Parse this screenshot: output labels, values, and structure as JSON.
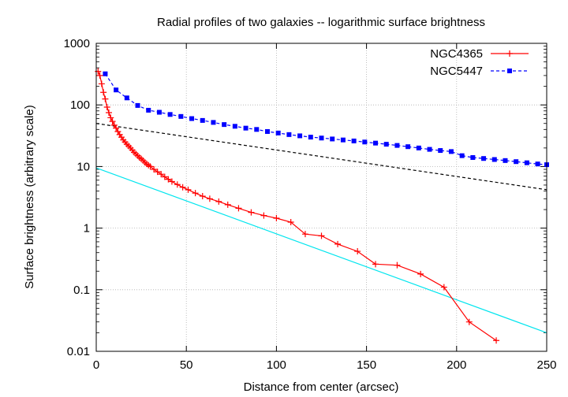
{
  "chart_data": {
    "type": "line",
    "title": "Radial profiles of two galaxies -- logarithmic surface brightness",
    "xlabel": "Distance from center (arcsec)",
    "ylabel": "Surface brightness (arbitrary scale)",
    "xlim": [
      0,
      250
    ],
    "ylim": [
      0.01,
      1000
    ],
    "yscale": "log",
    "grid": true,
    "legend_position": "top-right",
    "x_ticks": [
      "0",
      "50",
      "100",
      "150",
      "200",
      "250"
    ],
    "y_ticks": [
      "1000",
      "100",
      "10",
      "1",
      "0.1",
      "0.01"
    ],
    "series": [
      {
        "name": "NGC4365",
        "color": "#ff0000",
        "marker": "plus",
        "line_style": "solid",
        "x": [
          1,
          2,
          3,
          4,
          5,
          6,
          7,
          8,
          9,
          10,
          11,
          12,
          13,
          14,
          15,
          16,
          17,
          18,
          19,
          20,
          21,
          22,
          23,
          24,
          25,
          26,
          27,
          28,
          29,
          30,
          32,
          34,
          36,
          38,
          40,
          42,
          45,
          48,
          51,
          55,
          59,
          63,
          68,
          73,
          79,
          86,
          93,
          100,
          108,
          116,
          125,
          134,
          145,
          155,
          167,
          180,
          193,
          207,
          222
        ],
        "y": [
          350,
          300,
          220,
          160,
          125,
          92,
          75,
          62,
          54,
          47,
          42,
          37,
          33,
          30,
          27,
          25,
          23,
          21.5,
          20,
          18.5,
          17,
          16,
          15,
          14,
          13.3,
          12.5,
          11.7,
          11,
          10.5,
          10,
          9,
          8.2,
          7.5,
          6.8,
          6.2,
          5.7,
          5.1,
          4.6,
          4.2,
          3.7,
          3.3,
          3.0,
          2.7,
          2.4,
          2.1,
          1.8,
          1.6,
          1.45,
          1.25,
          0.8,
          0.75,
          0.55,
          0.42,
          0.26,
          0.25,
          0.18,
          0.11,
          0.03,
          0.015
        ]
      },
      {
        "name": "NGC5447",
        "color": "#0000ff",
        "marker": "square",
        "line_style": "dashed",
        "x": [
          5,
          11,
          17,
          23,
          29,
          35,
          41,
          47,
          53,
          59,
          65,
          71,
          77,
          83,
          89,
          95,
          101,
          107,
          113,
          119,
          125,
          131,
          137,
          143,
          149,
          155,
          161,
          167,
          173,
          179,
          185,
          191,
          197,
          203,
          209,
          215,
          221,
          227,
          233,
          239,
          245,
          250
        ],
        "y": [
          320,
          175,
          130,
          98,
          82,
          76,
          70,
          65,
          60,
          56,
          52,
          48,
          45,
          42,
          40,
          37,
          35,
          33,
          31.5,
          30,
          29,
          28,
          27,
          26,
          25,
          24,
          23,
          22,
          21,
          20,
          19,
          18.2,
          17.5,
          15,
          14,
          13.5,
          13,
          12.5,
          12,
          11.5,
          11,
          10.7
        ]
      }
    ],
    "reference_lines": [
      {
        "color": "#000000",
        "line_style": "dashed",
        "x": [
          0,
          250
        ],
        "y": [
          50,
          4.2
        ]
      },
      {
        "color": "#00e5ee",
        "line_style": "solid",
        "x": [
          0,
          250
        ],
        "y": [
          9.5,
          0.02
        ]
      }
    ]
  }
}
